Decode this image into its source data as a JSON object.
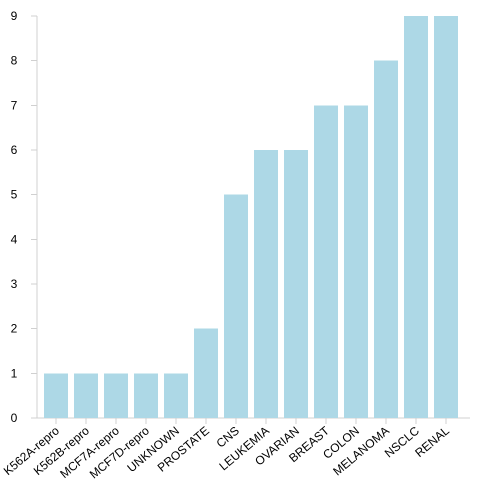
{
  "chart_data": {
    "type": "bar",
    "categories": [
      "K562A-repro",
      "K562B-repro",
      "MCF7A-repro",
      "MCF7D-repro",
      "UNKNOWN",
      "PROSTATE",
      "CNS",
      "LEUKEMIA",
      "OVARIAN",
      "BREAST",
      "COLON",
      "MELANOMA",
      "NSCLC",
      "RENAL"
    ],
    "values": [
      1,
      1,
      1,
      1,
      1,
      2,
      5,
      6,
      6,
      7,
      7,
      8,
      9,
      9
    ],
    "title": "",
    "xlabel": "",
    "ylabel": "",
    "ylim": [
      0,
      9
    ],
    "yticks": [
      0,
      1,
      2,
      3,
      4,
      5,
      6,
      7,
      8,
      9
    ],
    "grid": false,
    "legend": "none",
    "bar_color": "#add8e6",
    "axis_color": "#d0d0d0"
  }
}
